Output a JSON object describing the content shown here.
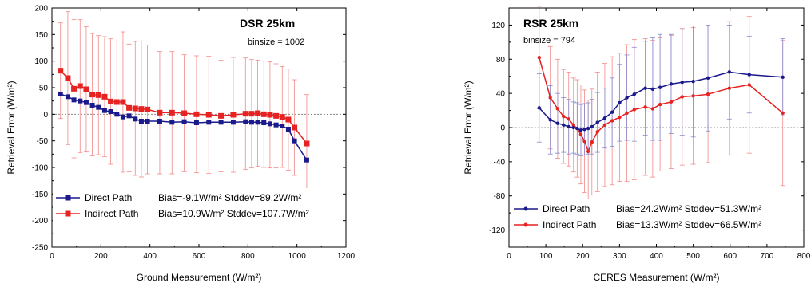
{
  "chart_data": [
    {
      "type": "line",
      "title": "DSR  25km",
      "annotation": "binsize = 1002",
      "xlabel": "Ground Measurement (W/m²)",
      "ylabel": "Retrieval Error (W/m²)",
      "xlim": [
        0,
        1200
      ],
      "ylim": [
        -250,
        200
      ],
      "xticks": [
        0,
        200,
        400,
        600,
        800,
        1000,
        1200
      ],
      "yticks": [
        -250,
        -200,
        -150,
        -100,
        -50,
        0,
        50,
        100,
        150,
        200
      ],
      "zero_line": true,
      "legend_position": "bottom-left",
      "series": [
        {
          "name": "Direct Path",
          "stats": "Bias=-9.1W/m²   Stddev=89.2W/m²",
          "color": "#1a1a8c",
          "marker": "square",
          "x": [
            35,
            65,
            90,
            115,
            140,
            165,
            190,
            215,
            240,
            265,
            290,
            315,
            340,
            365,
            390,
            440,
            490,
            540,
            590,
            640,
            690,
            740,
            790,
            815,
            840,
            865,
            890,
            915,
            940,
            965,
            990,
            1040
          ],
          "y": [
            38,
            33,
            27,
            25,
            22,
            17,
            13,
            7,
            5,
            0,
            -5,
            -3,
            -9,
            -13,
            -13,
            -13,
            -15,
            -14,
            -16,
            -15,
            -15,
            -15,
            -14,
            -15,
            -15,
            -16,
            -18,
            -20,
            -22,
            -28,
            -50,
            -86
          ],
          "err": [
            0,
            0,
            0,
            0,
            0,
            0,
            0,
            0,
            0,
            0,
            0,
            0,
            0,
            0,
            0,
            0,
            0,
            0,
            0,
            0,
            0,
            0,
            0,
            0,
            0,
            0,
            0,
            0,
            0,
            0,
            0,
            0
          ]
        },
        {
          "name": "Indirect Path",
          "stats": "Bias=10.9W/m²   Stddev=107.7W/m²",
          "color": "#e62222",
          "marker": "square",
          "x": [
            35,
            65,
            90,
            115,
            140,
            165,
            190,
            215,
            240,
            265,
            290,
            315,
            340,
            365,
            390,
            440,
            490,
            540,
            590,
            640,
            690,
            740,
            790,
            815,
            840,
            865,
            890,
            915,
            940,
            965,
            990,
            1040
          ],
          "y": [
            82,
            68,
            48,
            53,
            47,
            37,
            36,
            33,
            24,
            23,
            23,
            12,
            11,
            10,
            9,
            3,
            3,
            2,
            0,
            -1,
            -3,
            -1,
            1,
            1,
            2,
            0,
            -1,
            -3,
            -5,
            -10,
            -25,
            -55
          ],
          "err": [
            90,
            125,
            130,
            125,
            118,
            115,
            112,
            113,
            118,
            115,
            132,
            120,
            126,
            128,
            121,
            115,
            115,
            110,
            110,
            110,
            105,
            108,
            105,
            102,
            100,
            100,
            100,
            98,
            95,
            95,
            90,
            92
          ]
        }
      ]
    },
    {
      "type": "line",
      "title": "RSR  25km",
      "annotation": "binsize = 794",
      "xlabel": "CERES Measurement (W/m²)",
      "ylabel": "Retrieval Error (W/m²)",
      "xlim": [
        0,
        800
      ],
      "ylim": [
        -140,
        140
      ],
      "xticks": [
        0,
        100,
        200,
        300,
        400,
        500,
        600,
        700,
        800
      ],
      "yticks": [
        -120,
        -80,
        -40,
        0,
        40,
        80,
        120
      ],
      "zero_line": true,
      "legend_position": "bottom-left",
      "series": [
        {
          "name": "Direct Path",
          "stats": "Bias=24.2W/m²   Stddev=51.3W/m²",
          "color": "#1a1a8c",
          "marker": "circle",
          "x": [
            82,
            112,
            132,
            148,
            162,
            175,
            185,
            195,
            205,
            215,
            225,
            240,
            260,
            280,
            300,
            320,
            340,
            370,
            390,
            410,
            440,
            470,
            500,
            540,
            598,
            652,
            743
          ],
          "y": [
            23,
            9,
            5,
            3,
            1,
            0,
            -1,
            -3,
            -2,
            -1,
            1,
            6,
            11,
            18,
            29,
            35,
            39,
            46,
            45,
            47,
            51,
            53,
            54,
            58,
            65,
            62,
            59
          ],
          "err": [
            40,
            40,
            35,
            32,
            32,
            30,
            30,
            30,
            30,
            30,
            32,
            35,
            35,
            40,
            45,
            50,
            55,
            55,
            60,
            62,
            58,
            62,
            65,
            62,
            55,
            45,
            45
          ]
        },
        {
          "name": "Indirect Path",
          "stats": "Bias=13.3W/m²   Stddev=66.5W/m²",
          "color": "#e62222",
          "marker": "circle",
          "x": [
            82,
            112,
            132,
            148,
            162,
            175,
            185,
            195,
            205,
            215,
            225,
            240,
            260,
            280,
            300,
            320,
            340,
            370,
            390,
            410,
            440,
            470,
            500,
            540,
            598,
            652,
            743
          ],
          "y": [
            82,
            35,
            22,
            13,
            10,
            3,
            -1,
            -8,
            -16,
            -28,
            -17,
            -5,
            3,
            8,
            12,
            17,
            21,
            24,
            22,
            27,
            30,
            36,
            37,
            39,
            46,
            50,
            17
          ],
          "err": [
            60,
            60,
            58,
            55,
            55,
            55,
            57,
            58,
            60,
            60,
            62,
            70,
            72,
            75,
            75,
            80,
            82,
            80,
            80,
            78,
            78,
            80,
            80,
            80,
            78,
            80,
            85
          ]
        }
      ]
    }
  ]
}
